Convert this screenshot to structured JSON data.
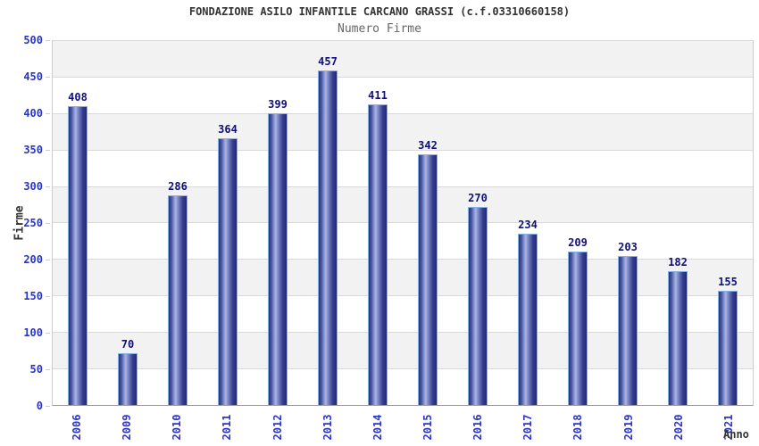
{
  "chart_data": {
    "type": "bar",
    "title": "FONDAZIONE ASILO INFANTILE CARCANO GRASSI (c.f.03310660158)",
    "subtitle": "Numero Firme",
    "xlabel": "Anno",
    "ylabel": "Firme",
    "categories": [
      "2006",
      "2009",
      "2010",
      "2011",
      "2012",
      "2013",
      "2014",
      "2015",
      "2016",
      "2017",
      "2018",
      "2019",
      "2020",
      "2021"
    ],
    "values": [
      408,
      70,
      286,
      364,
      399,
      457,
      411,
      342,
      270,
      234,
      209,
      203,
      182,
      155
    ],
    "ylim": [
      0,
      500
    ],
    "y_ticks": [
      0,
      50,
      100,
      150,
      200,
      250,
      300,
      350,
      400,
      450,
      500
    ],
    "grid": "horizontal gridlines every 50 with alternating gray/white bands, gray band at top (450-500)",
    "legend": "none",
    "value_labels": "above each bar",
    "colors": {
      "bar_gradient_dark": "#222a78",
      "bar_gradient_light": "#aab5e6",
      "bar_border": "#7fb3e8",
      "value_label": "#10107a",
      "axis_tick_label": "#2a35c8",
      "title": "#333333",
      "subtitle": "#666666",
      "band_gray": "#f2f2f2",
      "gridline": "#dadada",
      "axis_line": "#999999"
    }
  }
}
